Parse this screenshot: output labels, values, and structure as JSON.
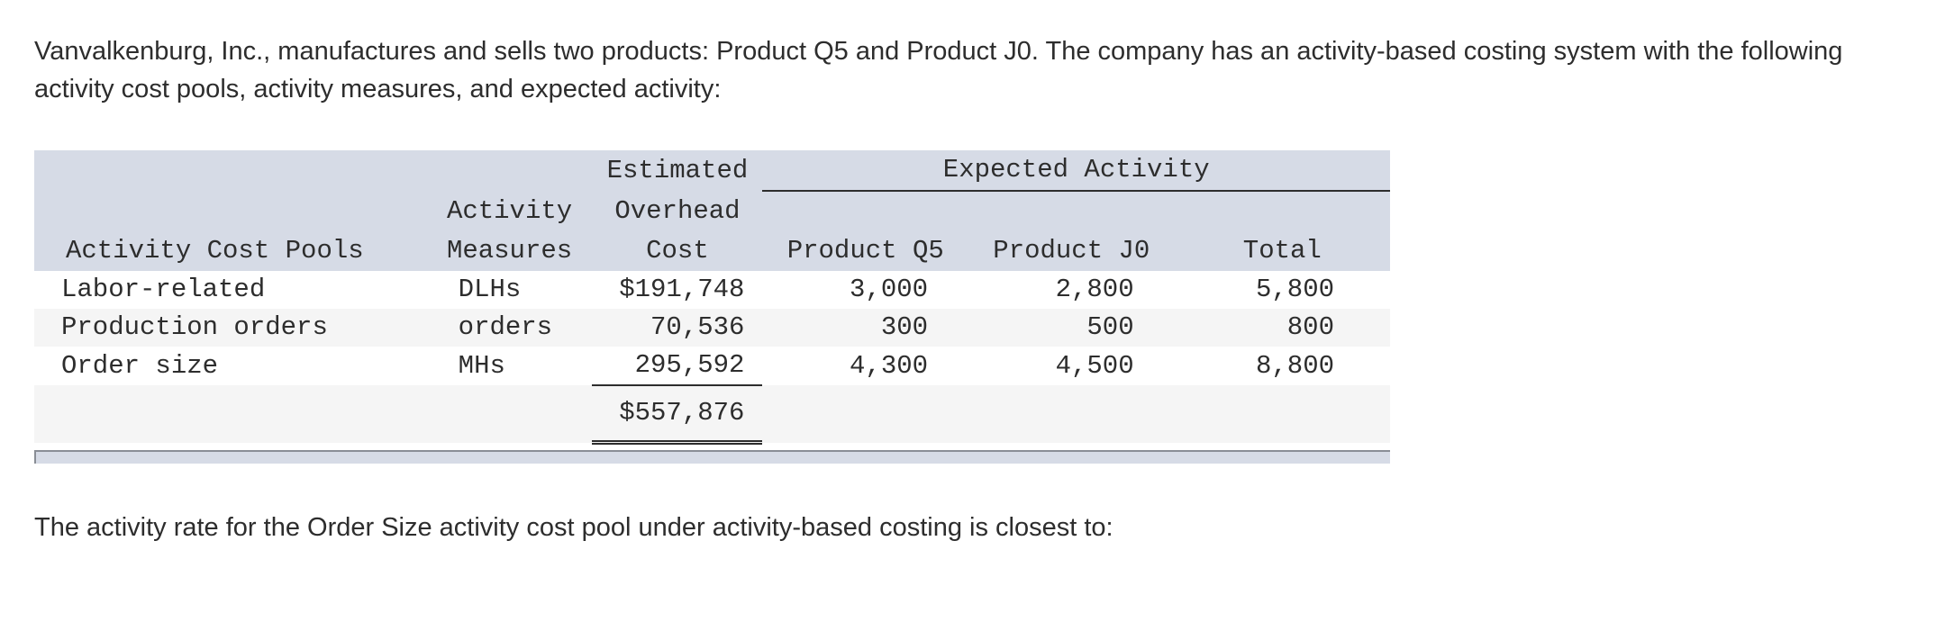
{
  "intro_text": "Vanvalkenburg, Inc., manufactures and sells two products: Product Q5 and Product J0. The company has an activity-based costing system with the following activity cost pools, activity measures, and expected activity:",
  "table": {
    "header": {
      "estimated": "Estimated",
      "expected_activity": "Expected Activity",
      "activity": "Activity",
      "overhead": "Overhead",
      "activity_cost_pools": "Activity Cost Pools",
      "measures": "Measures",
      "cost": "Cost",
      "product_q5": "Product Q5",
      "product_j0": "Product J0",
      "total": "Total"
    },
    "rows": [
      {
        "pool": "Labor-related",
        "measure": "DLHs",
        "cost": "$191,748",
        "q5": "3,000",
        "j0": "2,800",
        "total": "5,800"
      },
      {
        "pool": "Production orders",
        "measure": "orders",
        "cost": "70,536",
        "q5": "300",
        "j0": "500",
        "total": "800"
      },
      {
        "pool": "Order size",
        "measure": "MHs",
        "cost": "295,592",
        "q5": "4,300",
        "j0": "4,500",
        "total": "8,800"
      }
    ],
    "grand_total": "$557,876"
  },
  "question_text": "The activity rate for the Order Size activity cost pool under activity-based costing is closest to:"
}
